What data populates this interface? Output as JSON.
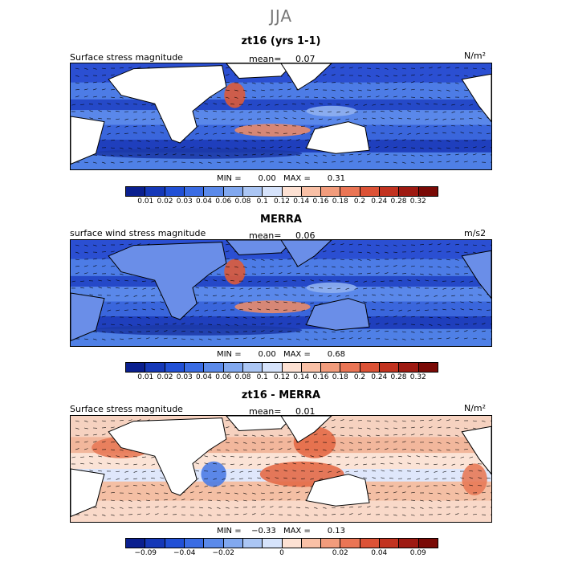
{
  "season": "JJA",
  "panels": [
    {
      "title": "zt16 (yrs 1-1)",
      "variable": "Surface stress magnitude",
      "mean_label": "mean=",
      "mean_value": "0.07",
      "units": "N/m²",
      "min_label": "MIN =",
      "min_value": "0.00",
      "max_label": "MAX =",
      "max_value": "0.31",
      "colorbar_levels": [
        "0.01",
        "0.02",
        "0.03",
        "0.04",
        "0.06",
        "0.08",
        "0.1",
        "0.12",
        "0.14",
        "0.16",
        "0.18",
        "0.2",
        "0.24",
        "0.28",
        "0.32"
      ],
      "colorbar_colors": [
        "#0a1f8f",
        "#1538b8",
        "#2150d6",
        "#3a6ce4",
        "#5b8aea",
        "#81a8ef",
        "#abc6f4",
        "#d6e3fb",
        "#fde1d3",
        "#f9c0a6",
        "#f29c7c",
        "#ea7555",
        "#dc5236",
        "#c23320",
        "#9e1a12",
        "#7a0a06"
      ]
    },
    {
      "title": "MERRA",
      "variable": "surface wind stress magnitude",
      "mean_label": "mean=",
      "mean_value": "0.06",
      "units": "m/s2",
      "min_label": "MIN =",
      "min_value": "0.00",
      "max_label": "MAX =",
      "max_value": "0.68",
      "colorbar_levels": [
        "0.01",
        "0.02",
        "0.03",
        "0.04",
        "0.06",
        "0.08",
        "0.1",
        "0.12",
        "0.14",
        "0.16",
        "0.18",
        "0.2",
        "0.24",
        "0.28",
        "0.32"
      ],
      "colorbar_colors": [
        "#0a1f8f",
        "#1538b8",
        "#2150d6",
        "#3a6ce4",
        "#5b8aea",
        "#81a8ef",
        "#abc6f4",
        "#d6e3fb",
        "#fde1d3",
        "#f9c0a6",
        "#f29c7c",
        "#ea7555",
        "#dc5236",
        "#c23320",
        "#9e1a12",
        "#7a0a06"
      ]
    },
    {
      "title": "zt16 - MERRA",
      "variable": "Surface stress magnitude",
      "mean_label": "mean=",
      "mean_value": "0.01",
      "units": "N/m²",
      "min_label": "MIN =",
      "min_value": "−0.33",
      "max_label": "MAX =",
      "max_value": "0.13",
      "colorbar_levels": [
        "−0.09",
        "−0.04",
        "−0.02",
        "0",
        "0.02",
        "0.04",
        "0.09"
      ],
      "colorbar_colors": [
        "#0a1f8f",
        "#1538b8",
        "#2150d6",
        "#3a6ce4",
        "#5b8aea",
        "#81a8ef",
        "#abc6f4",
        "#d6e3fb",
        "#fde1d3",
        "#f9c0a6",
        "#f29c7c",
        "#ea7555",
        "#dc5236",
        "#c23320",
        "#9e1a12",
        "#7a0a06"
      ]
    }
  ],
  "chart_data": [
    {
      "type": "heatmap",
      "title": "zt16 (yrs 1-1)",
      "variable": "Surface stress magnitude",
      "units": "N/m²",
      "mean": 0.07,
      "min": 0.0,
      "max": 0.31,
      "levels": [
        0.01,
        0.02,
        0.03,
        0.04,
        0.06,
        0.08,
        0.1,
        0.12,
        0.14,
        0.16,
        0.18,
        0.2,
        0.24,
        0.28,
        0.32
      ]
    },
    {
      "type": "heatmap",
      "title": "MERRA",
      "variable": "surface wind stress magnitude",
      "units": "m/s2",
      "mean": 0.06,
      "min": 0.0,
      "max": 0.68,
      "levels": [
        0.01,
        0.02,
        0.03,
        0.04,
        0.06,
        0.08,
        0.1,
        0.12,
        0.14,
        0.16,
        0.18,
        0.2,
        0.24,
        0.28,
        0.32
      ]
    },
    {
      "type": "heatmap",
      "title": "zt16 - MERRA",
      "variable": "Surface stress magnitude",
      "units": "N/m²",
      "mean": 0.01,
      "min": -0.33,
      "max": 0.13,
      "levels": [
        -0.09,
        -0.04,
        -0.02,
        0,
        0.02,
        0.04,
        0.09
      ]
    }
  ]
}
